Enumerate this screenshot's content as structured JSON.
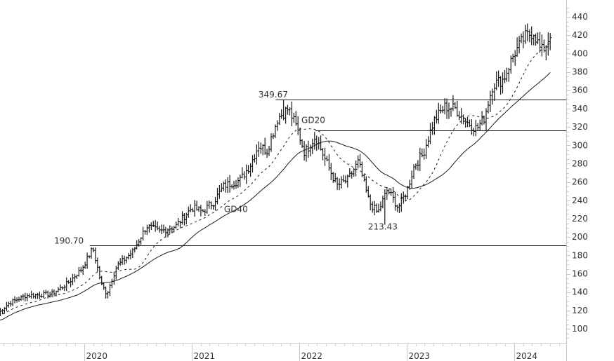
{
  "chart_data": {
    "type": "ohlc",
    "title": "",
    "xlabel": "",
    "ylabel": "",
    "ylim": [
      80,
      450
    ],
    "grid": false,
    "legend": "none",
    "y_ticks": [
      100,
      120,
      140,
      160,
      180,
      200,
      220,
      240,
      260,
      280,
      300,
      320,
      340,
      360,
      380,
      400,
      420,
      440
    ],
    "x_ticks": [
      {
        "label": "2020",
        "pos": 2020.0
      },
      {
        "label": "2021",
        "pos": 2021.0
      },
      {
        "label": "2022",
        "pos": 2022.0
      },
      {
        "label": "2023",
        "pos": 2023.0
      },
      {
        "label": "2024",
        "pos": 2024.0
      }
    ],
    "price_keypoints": [
      {
        "t": 2019.2,
        "v": 117
      },
      {
        "t": 2019.3,
        "v": 128
      },
      {
        "t": 2019.45,
        "v": 136
      },
      {
        "t": 2019.7,
        "v": 138
      },
      {
        "t": 2019.85,
        "v": 150
      },
      {
        "t": 2019.98,
        "v": 166
      },
      {
        "t": 2020.08,
        "v": 188
      },
      {
        "t": 2020.16,
        "v": 148
      },
      {
        "t": 2020.21,
        "v": 138
      },
      {
        "t": 2020.3,
        "v": 168
      },
      {
        "t": 2020.45,
        "v": 184
      },
      {
        "t": 2020.58,
        "v": 212
      },
      {
        "t": 2020.7,
        "v": 206
      },
      {
        "t": 2020.85,
        "v": 212
      },
      {
        "t": 2021.0,
        "v": 232
      },
      {
        "t": 2021.1,
        "v": 228
      },
      {
        "t": 2021.2,
        "v": 238
      },
      {
        "t": 2021.3,
        "v": 256
      },
      {
        "t": 2021.45,
        "v": 262
      },
      {
        "t": 2021.55,
        "v": 280
      },
      {
        "t": 2021.62,
        "v": 300
      },
      {
        "t": 2021.7,
        "v": 294
      },
      {
        "t": 2021.8,
        "v": 330
      },
      {
        "t": 2021.9,
        "v": 340
      },
      {
        "t": 2021.98,
        "v": 318
      },
      {
        "t": 2022.05,
        "v": 292
      },
      {
        "t": 2022.15,
        "v": 310
      },
      {
        "t": 2022.25,
        "v": 282
      },
      {
        "t": 2022.35,
        "v": 256
      },
      {
        "t": 2022.45,
        "v": 262
      },
      {
        "t": 2022.55,
        "v": 282
      },
      {
        "t": 2022.65,
        "v": 238
      },
      {
        "t": 2022.73,
        "v": 226
      },
      {
        "t": 2022.82,
        "v": 252
      },
      {
        "t": 2022.92,
        "v": 232
      },
      {
        "t": 2023.0,
        "v": 250
      },
      {
        "t": 2023.07,
        "v": 278
      },
      {
        "t": 2023.15,
        "v": 290
      },
      {
        "t": 2023.25,
        "v": 326
      },
      {
        "t": 2023.35,
        "v": 342
      },
      {
        "t": 2023.45,
        "v": 340
      },
      {
        "t": 2023.55,
        "v": 326
      },
      {
        "t": 2023.65,
        "v": 318
      },
      {
        "t": 2023.72,
        "v": 330
      },
      {
        "t": 2023.8,
        "v": 366
      },
      {
        "t": 2023.9,
        "v": 372
      },
      {
        "t": 2024.0,
        "v": 400
      },
      {
        "t": 2024.1,
        "v": 418
      },
      {
        "t": 2024.18,
        "v": 424
      },
      {
        "t": 2024.25,
        "v": 402
      },
      {
        "t": 2024.3,
        "v": 410
      },
      {
        "t": 2024.35,
        "v": 428
      }
    ],
    "moving_averages": [
      {
        "name": "GD20",
        "style": "dashed",
        "label_at": {
          "t": 2022.0,
          "v": 322
        }
      },
      {
        "name": "GD40",
        "style": "solid",
        "label_at": {
          "t": 2021.3,
          "v": 225
        }
      }
    ],
    "horizontal_lines": [
      {
        "value": 349.67,
        "label": "349.67",
        "from_t": 2021.78
      },
      {
        "value": 316.0,
        "label": "",
        "from_t": 2022.15
      },
      {
        "value": 190.7,
        "label": "190.70",
        "from_t": 2020.05
      }
    ],
    "annotations": [
      {
        "text": "349.67",
        "t": 2021.62,
        "v": 349.67
      },
      {
        "text": "190.70",
        "t": 2019.72,
        "v": 190.7
      },
      {
        "text": "GD20",
        "t": 2022.02,
        "v": 322
      },
      {
        "text": "GD40",
        "t": 2021.3,
        "v": 225
      },
      {
        "text": "213.43",
        "t": 2022.64,
        "v": 206
      }
    ],
    "low_marker": {
      "value": 213.43,
      "t": 2022.79
    },
    "high_marker": {
      "value": 349.67,
      "t": 2021.86
    }
  },
  "colors": {
    "bars": "#1a1a1a",
    "lines": "#1a1a1a",
    "axis": "#c8c8c8",
    "label_text": "#333333"
  }
}
